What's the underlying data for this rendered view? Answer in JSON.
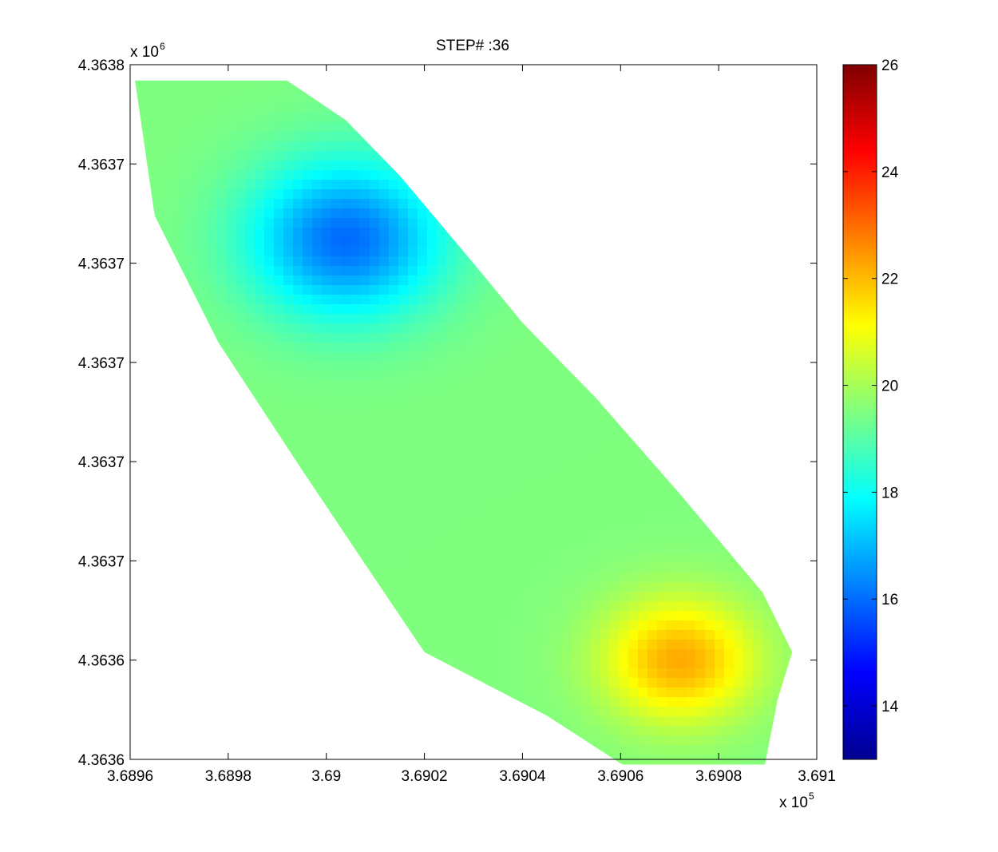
{
  "chart_data": {
    "type": "heatmap",
    "title": "STEP# :36",
    "xlabel": "",
    "ylabel": "",
    "x_ticks": [
      "3.6896",
      "3.6898",
      "3.69",
      "3.6902",
      "3.6904",
      "3.6906",
      "3.6908",
      "3.691"
    ],
    "y_ticks": [
      "4.3638",
      "4.3637",
      "4.3637",
      "4.3637",
      "4.3637",
      "4.3637",
      "4.3636",
      "4.3636"
    ],
    "x_tick_values": [
      368960,
      368980,
      369000,
      369020,
      369040,
      369060,
      369080,
      369100
    ],
    "y_tick_values": [
      4363800,
      4363775,
      4363750,
      4363725,
      4363700,
      4363675,
      4363650,
      4363625
    ],
    "x_multiplier": {
      "base": "x 10",
      "exponent": "5"
    },
    "y_multiplier": {
      "base": "x 10",
      "exponent": "6"
    },
    "xlim": [
      368960,
      369100
    ],
    "ylim": [
      4363625,
      4363800
    ],
    "grid": false,
    "colormap": "jet",
    "colorbar": {
      "ticks": [
        "14",
        "16",
        "18",
        "20",
        "22",
        "24",
        "26"
      ],
      "tick_values": [
        14,
        16,
        18,
        20,
        22,
        24,
        26
      ],
      "range": [
        13,
        26
      ],
      "placement": "right"
    },
    "value_peaks": [
      {
        "x": 369004,
        "y": 4363756,
        "value": 16.0,
        "sigma": 14
      },
      {
        "x": 369072,
        "y": 4363650,
        "value": 22.2,
        "sigma": 11
      }
    ],
    "value_baseline": 19.5,
    "domain_polygon": [
      [
        368961,
        4363796
      ],
      [
        368992,
        4363796
      ],
      [
        369004,
        4363786
      ],
      [
        369015,
        4363772
      ],
      [
        369030,
        4363750
      ],
      [
        369040,
        4363735
      ],
      [
        369055,
        4363716
      ],
      [
        369072,
        4363692
      ],
      [
        369089,
        4363667
      ],
      [
        369095,
        4363652
      ],
      [
        369092,
        4363640
      ],
      [
        369089,
        4363621
      ],
      [
        369080,
        4363617
      ],
      [
        369065,
        4363620
      ],
      [
        369045,
        4363636
      ],
      [
        369020,
        4363652
      ],
      [
        369008,
        4363674
      ],
      [
        368995,
        4363698
      ],
      [
        368978,
        4363730
      ],
      [
        368965,
        4363762
      ]
    ]
  }
}
